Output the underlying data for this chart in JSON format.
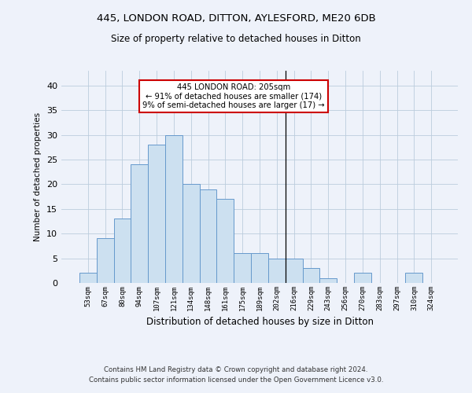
{
  "title1": "445, LONDON ROAD, DITTON, AYLESFORD, ME20 6DB",
  "title2": "Size of property relative to detached houses in Ditton",
  "xlabel": "Distribution of detached houses by size in Ditton",
  "ylabel": "Number of detached properties",
  "bin_labels": [
    "53sqm",
    "67sqm",
    "80sqm",
    "94sqm",
    "107sqm",
    "121sqm",
    "134sqm",
    "148sqm",
    "161sqm",
    "175sqm",
    "189sqm",
    "202sqm",
    "216sqm",
    "229sqm",
    "243sqm",
    "256sqm",
    "270sqm",
    "283sqm",
    "297sqm",
    "310sqm",
    "324sqm"
  ],
  "bar_values": [
    2,
    9,
    13,
    24,
    28,
    30,
    20,
    19,
    17,
    6,
    6,
    5,
    5,
    3,
    1,
    0,
    2,
    0,
    0,
    2,
    0
  ],
  "bar_color": "#cce0f0",
  "bar_edge_color": "#6699cc",
  "vline_x": 11.5,
  "annotation_title": "445 LONDON ROAD: 205sqm",
  "annotation_line1": "← 91% of detached houses are smaller (174)",
  "annotation_line2": "9% of semi-detached houses are larger (17) →",
  "annotation_box_color": "#cc0000",
  "ylim": [
    0,
    43
  ],
  "yticks": [
    0,
    5,
    10,
    15,
    20,
    25,
    30,
    35,
    40
  ],
  "footer1": "Contains HM Land Registry data © Crown copyright and database right 2024.",
  "footer2": "Contains public sector information licensed under the Open Government Licence v3.0.",
  "bg_color": "#eef2fa"
}
